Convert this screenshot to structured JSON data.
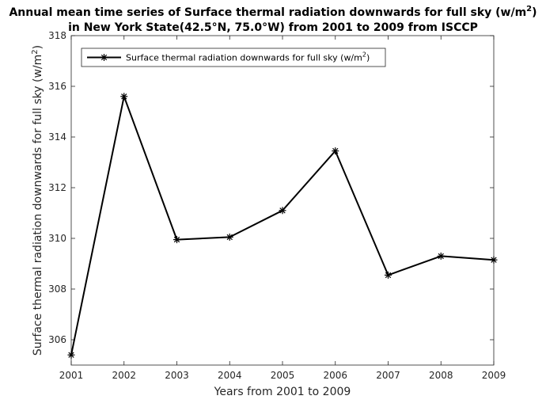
{
  "chart_data": {
    "type": "line",
    "title_line1": "Annual mean time series of Surface thermal radiation downwards for full sky (w/m",
    "title_line1_sup": "2",
    "title_line1_end": ")",
    "title_line2": "in New York State(42.5°N, 75.0°W) from 2001 to 2009 from ISCCP",
    "xlabel": "Years from 2001 to 2009",
    "ylabel": "Surface thermal radiation downwards for full sky (w/m",
    "ylabel_sup": "2",
    "ylabel_end": ")",
    "x": [
      2001,
      2002,
      2003,
      2004,
      2005,
      2006,
      2007,
      2008,
      2009
    ],
    "x_tick_labels": [
      "2001",
      "2002",
      "2003",
      "2004",
      "2005",
      "2006",
      "2007",
      "2008",
      "2009"
    ],
    "y_tick_values": [
      306,
      308,
      310,
      312,
      314,
      316,
      318
    ],
    "y_tick_labels": [
      "306",
      "308",
      "310",
      "312",
      "314",
      "316",
      "318"
    ],
    "xlim": [
      2001,
      2009
    ],
    "ylim": [
      305,
      318
    ],
    "series": [
      {
        "name": "Surface thermal radiation downwards for full sky (w/m",
        "name_sup": "2",
        "name_end": ")",
        "marker": "asterisk",
        "color": "#000000",
        "values": [
          305.4,
          315.6,
          309.95,
          310.05,
          311.1,
          313.45,
          308.55,
          309.3,
          309.15
        ]
      }
    ],
    "legend_position": "top-left",
    "grid": false
  }
}
